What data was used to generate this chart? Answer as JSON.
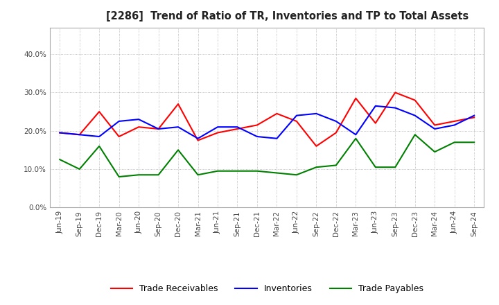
{
  "title": "[2286]  Trend of Ratio of TR, Inventories and TP to Total Assets",
  "x_labels": [
    "Jun-19",
    "Sep-19",
    "Dec-19",
    "Mar-20",
    "Jun-20",
    "Sep-20",
    "Dec-20",
    "Mar-21",
    "Jun-21",
    "Sep-21",
    "Dec-21",
    "Mar-22",
    "Jun-22",
    "Sep-22",
    "Dec-22",
    "Mar-23",
    "Jun-23",
    "Sep-23",
    "Dec-23",
    "Mar-24",
    "Jun-24",
    "Sep-24"
  ],
  "trade_receivables": [
    19.5,
    19.0,
    25.0,
    18.5,
    21.0,
    20.5,
    27.0,
    17.5,
    19.5,
    20.5,
    21.5,
    24.5,
    22.5,
    16.0,
    19.5,
    28.5,
    22.0,
    30.0,
    28.0,
    21.5,
    22.5,
    23.5
  ],
  "inventories": [
    19.5,
    19.0,
    18.5,
    22.5,
    23.0,
    20.5,
    21.0,
    18.0,
    21.0,
    21.0,
    18.5,
    18.0,
    24.0,
    24.5,
    22.5,
    19.0,
    26.5,
    26.0,
    24.0,
    20.5,
    21.5,
    24.0
  ],
  "trade_payables": [
    12.5,
    10.0,
    16.0,
    8.0,
    8.5,
    8.5,
    15.0,
    8.5,
    9.5,
    9.5,
    9.5,
    9.0,
    8.5,
    10.5,
    11.0,
    18.0,
    10.5,
    10.5,
    19.0,
    14.5,
    17.0,
    17.0
  ],
  "tr_color": "#ff0000",
  "inv_color": "#0000ff",
  "tp_color": "#008000",
  "ylim": [
    0,
    47
  ],
  "yticks": [
    0,
    10,
    20,
    30,
    40
  ],
  "background_color": "#ffffff",
  "grid_color": "#aaaaaa"
}
